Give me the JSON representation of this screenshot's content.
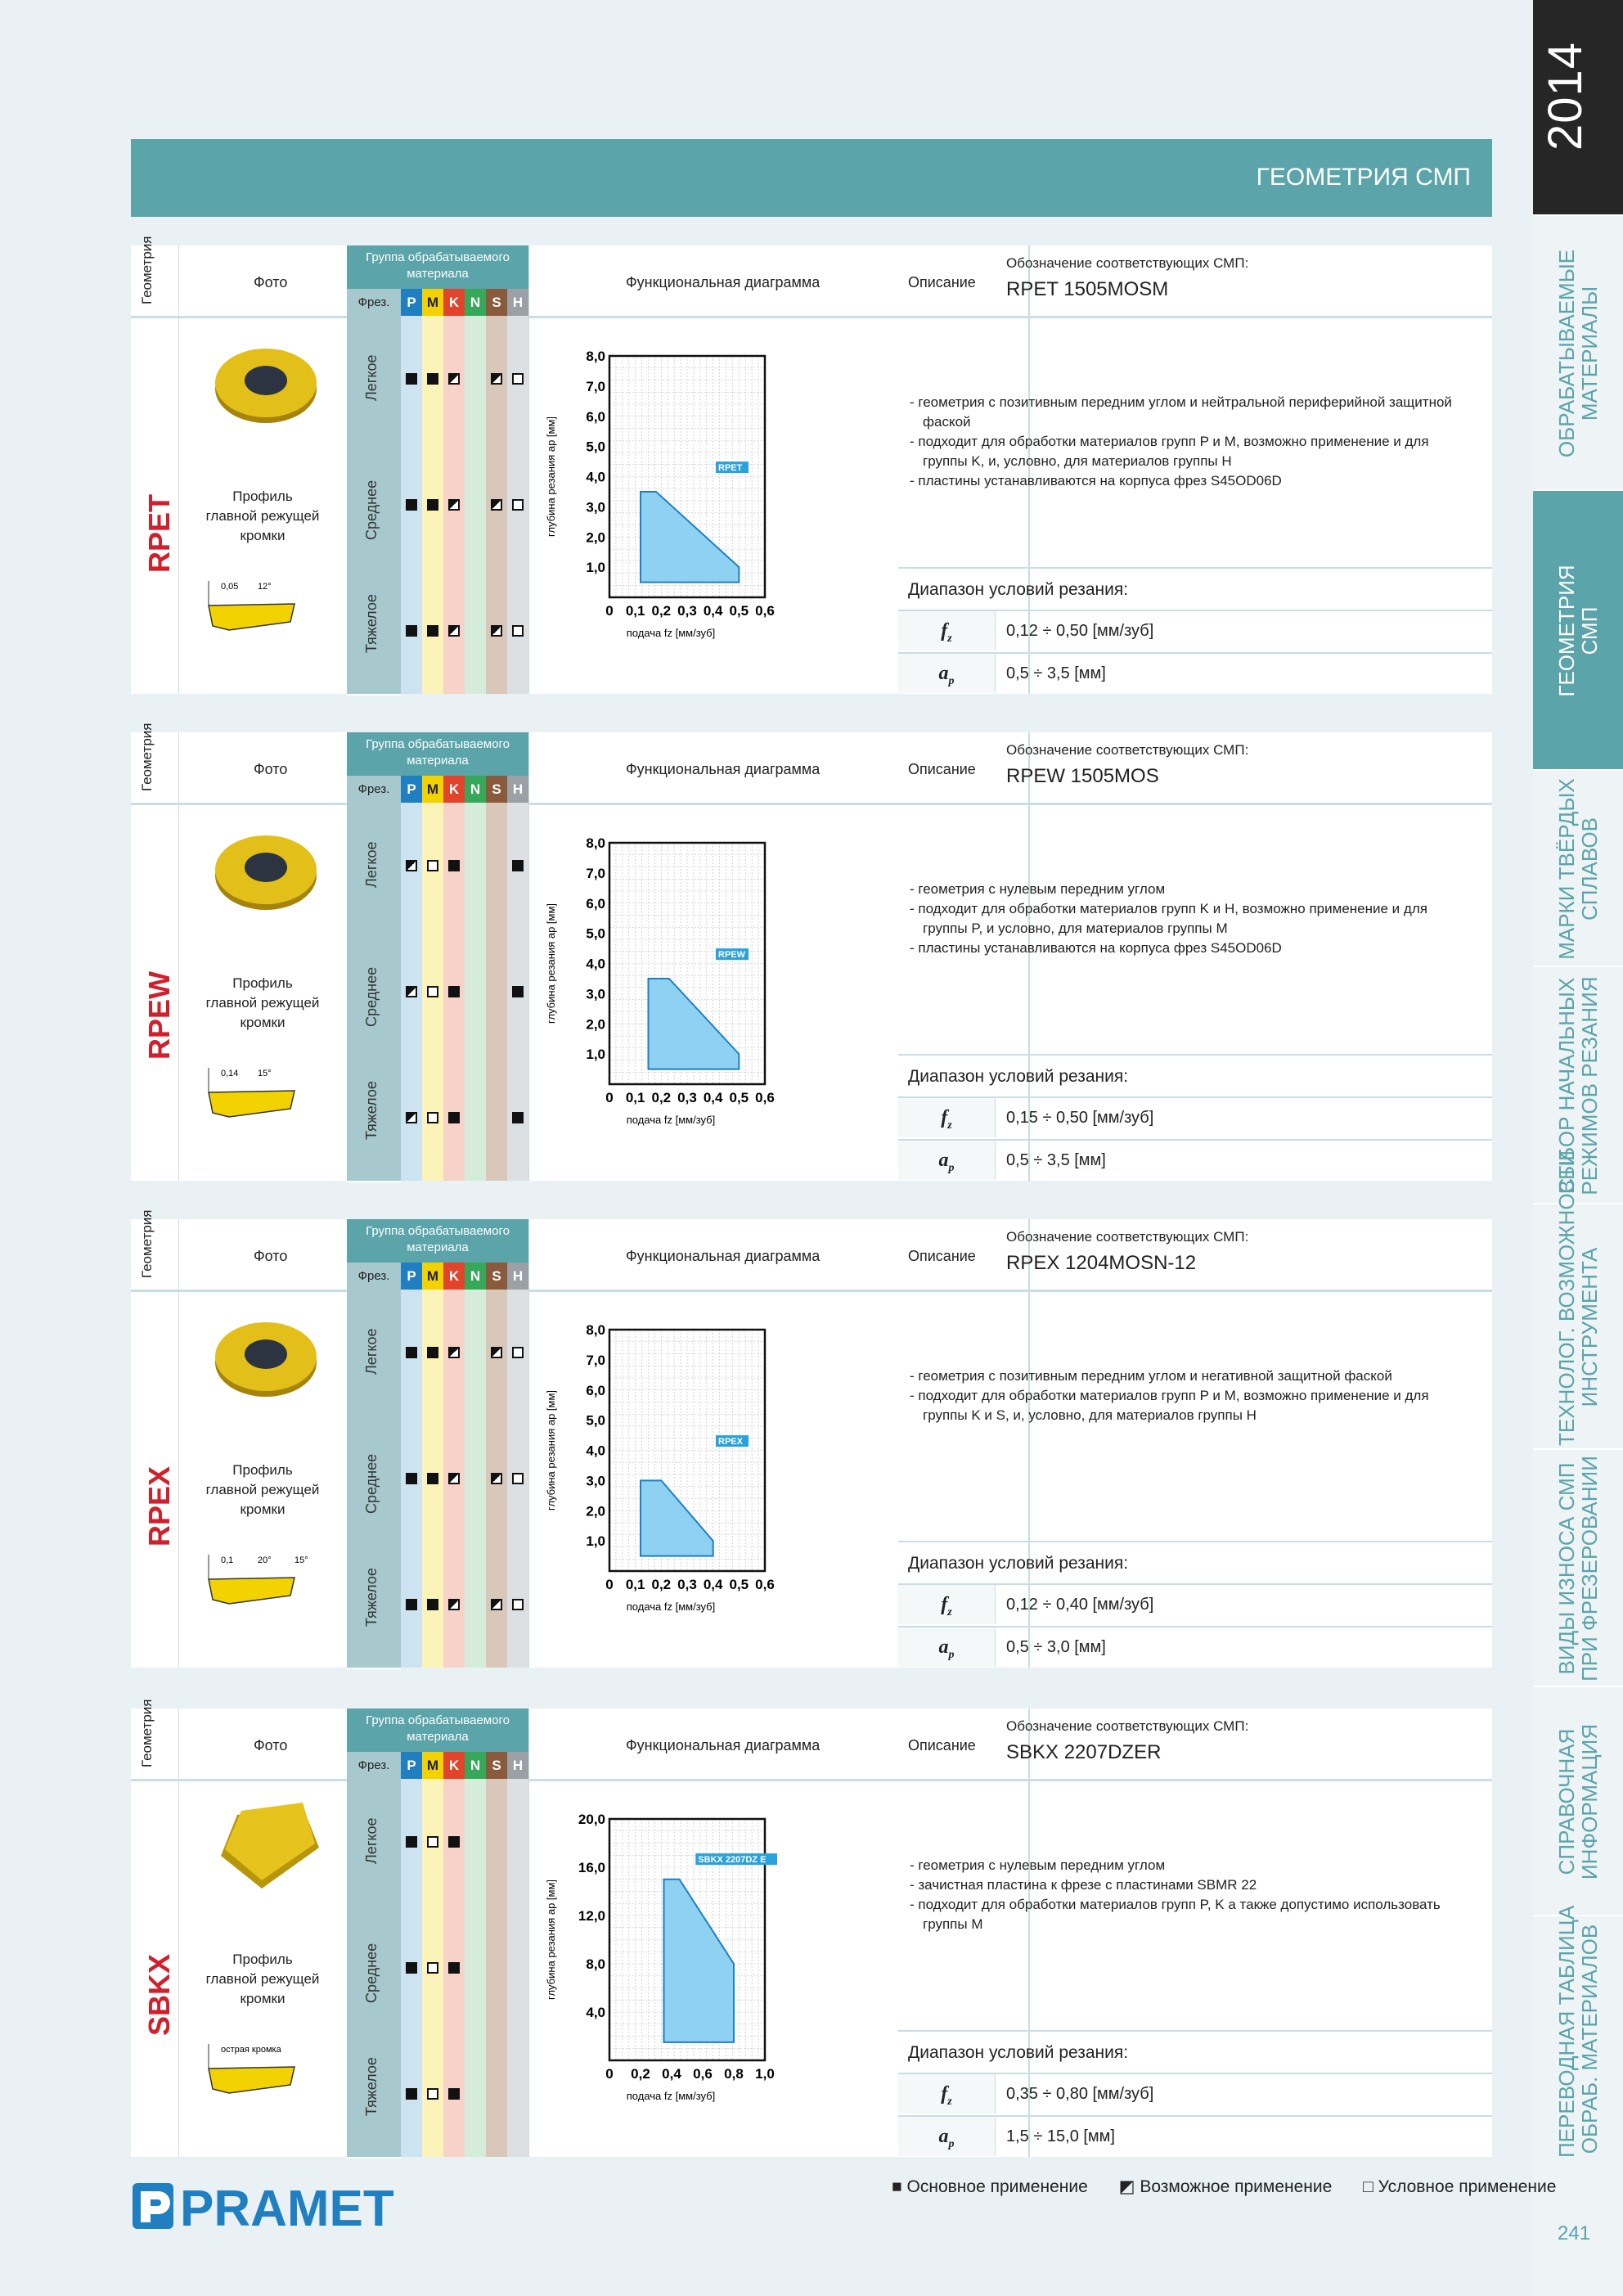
{
  "header": {
    "title": "ГЕОМЕТРИЯ СМП"
  },
  "year": "2014",
  "side_tabs": [
    {
      "label": "ОБРАБАТЫВАЕМЫЕ\nМАТЕРИАЛЫ",
      "active": false
    },
    {
      "label": "ГЕОМЕТРИЯ\nСМП",
      "active": true
    },
    {
      "label": "МАРКИ ТВЁРДЫХ\nСПЛАВОВ",
      "active": false
    },
    {
      "label": "ВЫБОР НАЧАЛЬНЫХ\nРЕЖИМОВ РЕЗАНИЯ",
      "active": false
    },
    {
      "label": "ТЕХНОЛОГ. ВОЗМОЖНОСТИ\nИНСТРУМЕНТА",
      "active": false
    },
    {
      "label": "ВИДЫ ИЗНОСА СМП\nПРИ ФРЕЗЕРОВАНИИ",
      "active": false
    },
    {
      "label": "СПРАВОЧНАЯ\nИНФОРМАЦИЯ",
      "active": false
    },
    {
      "label": "ПЕРЕВОДНАЯ ТАБЛИЦА\nОБРАБ. МАТЕРИАЛОВ",
      "active": false
    }
  ],
  "page_number": "241",
  "table_labels": {
    "geometry": "Геометрия",
    "photo": "Фото",
    "group_header": "Группа обрабатываемого материала",
    "milling": "Фрез.",
    "diagram": "Функциональная диаграмма",
    "description": "Описание",
    "designation": "Обозначение соответствующих СМП:",
    "range": "Диапазон условий резания:",
    "profile": "Профиль\nглавной режущей кромки",
    "fz_symbol": "fz",
    "ap_symbol": "ap",
    "modes": [
      "Легкое",
      "Среднее",
      "Тяжелое"
    ],
    "groups": [
      "P",
      "M",
      "K",
      "N",
      "S",
      "H"
    ]
  },
  "group_colors": {
    "P": "#1f7fc1",
    "M": "#f2d200",
    "K": "#e2432b",
    "N": "#37a85a",
    "S": "#8a5a3c",
    "H": "#9aa0a5"
  },
  "blocks": [
    {
      "code": "RPET",
      "insert_code": "RPET 1505MOSM",
      "description": [
        "геометрия с позитивным передним углом и нейтральной периферийной защитной фаской",
        "подходит для обработки материалов групп P и M, возможно применение и для группы K, и, условно, для материалов группы H",
        "пластины устанавливаются на корпуса фрез S45OD06D"
      ],
      "fz": "0,12 ÷ 0,50 [мм/зуб]",
      "ap": "0,5 ÷ 3,5 [мм]",
      "symbols": [
        [
          "f",
          "f",
          "h",
          "",
          "h",
          "e"
        ],
        [
          "f",
          "f",
          "h",
          "",
          "h",
          "e"
        ],
        [
          "f",
          "f",
          "h",
          "",
          "h",
          "e"
        ]
      ],
      "profile_dims": [
        "0,05",
        "12°"
      ]
    },
    {
      "code": "RPEW",
      "insert_code": "RPEW 1505MOS",
      "description": [
        "геометрия с нулевым передним углом",
        "подходит для обработки материалов групп K и H, возможно применение и для группы P, и условно, для материалов группы M",
        "пластины устанавливаются на корпуса фрез S45OD06D"
      ],
      "fz": "0,15 ÷ 0,50 [мм/зуб]",
      "ap": "0,5 ÷ 3,5 [мм]",
      "symbols": [
        [
          "h",
          "e",
          "f",
          "",
          "",
          "f"
        ],
        [
          "h",
          "e",
          "f",
          "",
          "",
          "f"
        ],
        [
          "h",
          "e",
          "f",
          "",
          "",
          "f"
        ]
      ],
      "profile_dims": [
        "0,14",
        "15°"
      ]
    },
    {
      "code": "RPEX",
      "insert_code": "RPEX 1204MOSN-12",
      "description": [
        "геометрия с позитивным передним углом и негативной защитной фаской",
        "подходит для обработки материалов групп P и M, возможно применение и для группы K и S, и, условно, для материалов группы H"
      ],
      "fz": "0,12 ÷ 0,40 [мм/зуб]",
      "ap": "0,5 ÷ 3,0 [мм]",
      "symbols": [
        [
          "f",
          "f",
          "h",
          "",
          "h",
          "e"
        ],
        [
          "f",
          "f",
          "h",
          "",
          "h",
          "e"
        ],
        [
          "f",
          "f",
          "h",
          "",
          "h",
          "e"
        ]
      ],
      "profile_dims": [
        "0,1",
        "20°",
        "15°"
      ]
    },
    {
      "code": "SBKX",
      "insert_code": "SBKX 2207DZER",
      "description": [
        "геометрия с нулевым передним углом",
        "зачистная пластина к фрезе с пластинами SBMR 22",
        "подходит для обработки материалов групп P, K а также допустимо использовать группы M"
      ],
      "fz": "0,35 ÷ 0,80 [мм/зуб]",
      "ap": "1,5 ÷ 15,0 [мм]",
      "symbols": [
        [
          "f",
          "e",
          "f",
          "",
          "",
          ""
        ],
        [
          "f",
          "e",
          "f",
          "",
          "",
          ""
        ],
        [
          "f",
          "e",
          "f",
          "",
          "",
          ""
        ]
      ],
      "profile_dims": [
        "острая кромка"
      ]
    }
  ],
  "chart_data": [
    {
      "type": "area",
      "series": [
        {
          "name": "RPET",
          "x": [
            0.12,
            0.12,
            0.18,
            0.5,
            0.5
          ],
          "y": [
            0.5,
            3.5,
            3.5,
            1.0,
            0.5
          ]
        }
      ],
      "xlabel": "подача fz [мм/зуб]",
      "ylabel": "глубина резания ap [мм]",
      "xlim": [
        0,
        0.6
      ],
      "ylim": [
        0,
        8
      ],
      "xticks": [
        "0",
        "0,1",
        "0,2",
        "0,3",
        "0,4",
        "0,5",
        "0,6"
      ],
      "yticks": [
        "1,0",
        "2,0",
        "3,0",
        "4,0",
        "5,0",
        "6,0",
        "7,0",
        "8,0"
      ],
      "grid": true
    },
    {
      "type": "area",
      "series": [
        {
          "name": "RPEW",
          "x": [
            0.15,
            0.15,
            0.23,
            0.5,
            0.5
          ],
          "y": [
            0.5,
            3.5,
            3.5,
            1.0,
            0.5
          ]
        }
      ],
      "xlabel": "подача fz [мм/зуб]",
      "ylabel": "глубина резания ap [мм]",
      "xlim": [
        0,
        0.6
      ],
      "ylim": [
        0,
        8
      ],
      "xticks": [
        "0",
        "0,1",
        "0,2",
        "0,3",
        "0,4",
        "0,5",
        "0,6"
      ],
      "yticks": [
        "1,0",
        "2,0",
        "3,0",
        "4,0",
        "5,0",
        "6,0",
        "7,0",
        "8,0"
      ],
      "grid": true
    },
    {
      "type": "area",
      "series": [
        {
          "name": "RPEX",
          "x": [
            0.12,
            0.12,
            0.2,
            0.4,
            0.4
          ],
          "y": [
            0.5,
            3.0,
            3.0,
            1.0,
            0.5
          ]
        }
      ],
      "xlabel": "подача fz [мм/зуб]",
      "ylabel": "глубина резания ap [мм]",
      "xlim": [
        0,
        0.6
      ],
      "ylim": [
        0,
        8
      ],
      "xticks": [
        "0",
        "0,1",
        "0,2",
        "0,3",
        "0,4",
        "0,5",
        "0,6"
      ],
      "yticks": [
        "1,0",
        "2,0",
        "3,0",
        "4,0",
        "5,0",
        "6,0",
        "7,0",
        "8,0"
      ],
      "grid": true
    },
    {
      "type": "area",
      "series": [
        {
          "name": "SBKX 2207DZ E",
          "x": [
            0.35,
            0.35,
            0.45,
            0.8,
            0.8
          ],
          "y": [
            1.5,
            15.0,
            15.0,
            8.0,
            1.5
          ]
        }
      ],
      "xlabel": "подача fz [мм/зуб]",
      "ylabel": "глубина резания ap [мм]",
      "xlim": [
        0,
        1.0
      ],
      "ylim": [
        0,
        20
      ],
      "xticks": [
        "0",
        "0,2",
        "0,4",
        "0,6",
        "0,8",
        "1,0"
      ],
      "yticks": [
        "4,0",
        "8,0",
        "12,0",
        "16,0",
        "20,0"
      ],
      "grid": true
    }
  ],
  "legend": [
    "Основное применение",
    "Возможное применение",
    "Условное применение"
  ],
  "logo": "PRAMET"
}
